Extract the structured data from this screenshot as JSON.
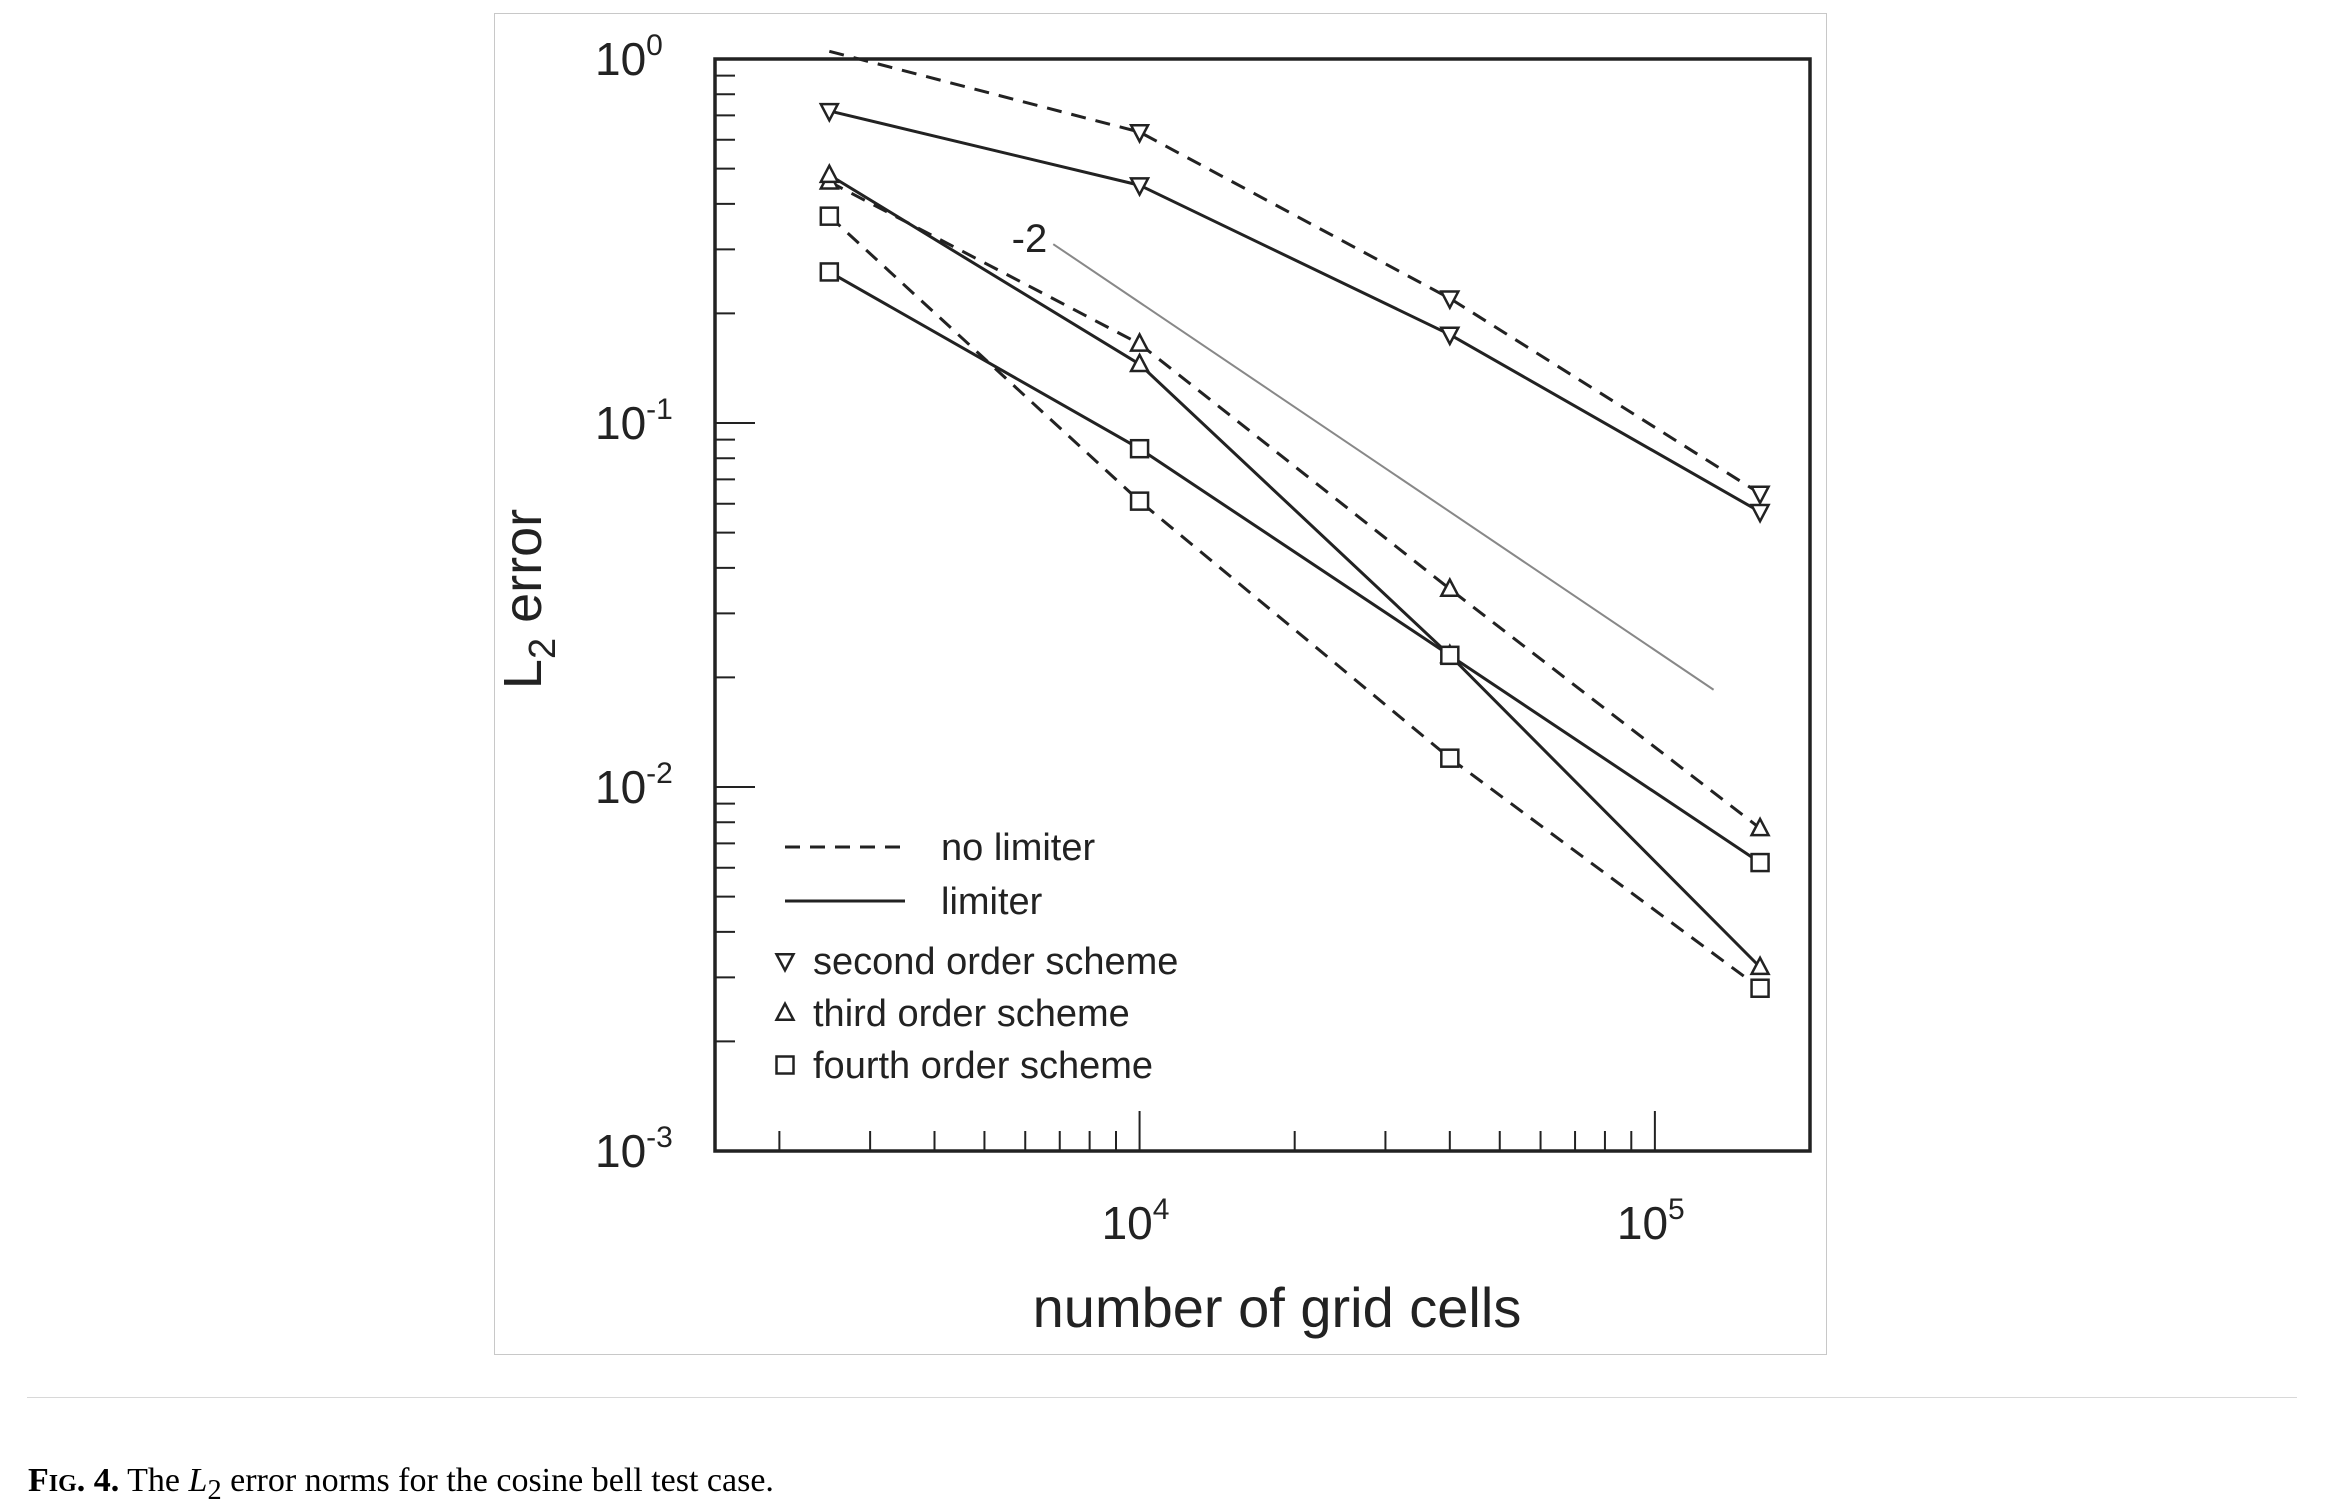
{
  "chart_data": {
    "type": "line",
    "xlabel": "number of grid cells",
    "ylabel": {
      "base": "L",
      "sub": "2",
      "rest": " error"
    },
    "xscale": "log",
    "yscale": "log",
    "xlim": [
      1500,
      200000
    ],
    "ylim": [
      0.001,
      1
    ],
    "x_ticks": [
      {
        "value": 10000,
        "base": "10",
        "exp": "4"
      },
      {
        "value": 100000,
        "base": "10",
        "exp": "5"
      }
    ],
    "y_ticks": [
      {
        "value": 1,
        "base": "10",
        "exp": "0"
      },
      {
        "value": 0.1,
        "base": "10",
        "exp": "-1"
      },
      {
        "value": 0.01,
        "base": "10",
        "exp": "-2"
      },
      {
        "value": 0.001,
        "base": "10",
        "exp": "-3"
      }
    ],
    "grid": false,
    "legend_position": "bottom-left",
    "legend": {
      "styles": [
        {
          "label": "no limiter",
          "dash": true
        },
        {
          "label": "limiter",
          "dash": false
        }
      ],
      "markers": [
        {
          "label": "second order scheme",
          "marker": "triangle-down"
        },
        {
          "label": "third order scheme",
          "marker": "triangle-up"
        },
        {
          "label": "fourth order scheme",
          "marker": "square"
        }
      ]
    },
    "slope_annotation": {
      "label": "-2",
      "x": [
        6800,
        130000
      ],
      "y": [
        0.31,
        0.0185
      ]
    },
    "series": [
      {
        "marker": "triangle-down",
        "dash": true,
        "x": [
          2500,
          10000,
          40000,
          160000
        ],
        "y": [
          1.05,
          0.63,
          0.22,
          0.064
        ]
      },
      {
        "marker": "triangle-down",
        "dash": false,
        "x": [
          2500,
          10000,
          40000,
          160000
        ],
        "y": [
          0.72,
          0.45,
          0.175,
          0.057
        ]
      },
      {
        "marker": "triangle-up",
        "dash": true,
        "x": [
          2500,
          10000,
          40000,
          160000
        ],
        "y": [
          0.46,
          0.165,
          0.035,
          0.0077
        ]
      },
      {
        "marker": "triangle-up",
        "dash": false,
        "x": [
          2500,
          10000,
          40000,
          160000
        ],
        "y": [
          0.48,
          0.145,
          0.023,
          0.0032
        ]
      },
      {
        "marker": "square",
        "dash": true,
        "x": [
          2500,
          10000,
          40000,
          160000
        ],
        "y": [
          0.37,
          0.061,
          0.012,
          0.0028
        ]
      },
      {
        "marker": "square",
        "dash": false,
        "x": [
          2500,
          10000,
          40000,
          160000
        ],
        "y": [
          0.26,
          0.085,
          0.023,
          0.0062
        ]
      }
    ]
  },
  "caption": {
    "label": "Fig.",
    "number": "4.",
    "text_before": " The ",
    "math_base": "L",
    "math_sub": "2",
    "text_after": " error norms for the cosine bell test case."
  }
}
